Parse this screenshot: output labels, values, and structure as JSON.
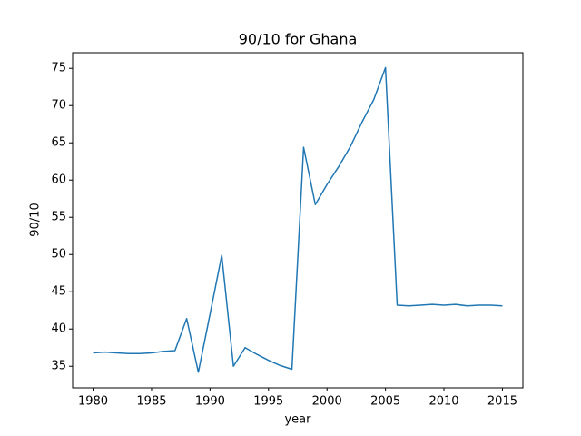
{
  "chart_data": {
    "type": "line",
    "title": "90/10 for Ghana",
    "xlabel": "year",
    "ylabel": "90/10",
    "x": [
      1980,
      1981,
      1982,
      1983,
      1984,
      1985,
      1986,
      1987,
      1988,
      1989,
      1990,
      1991,
      1992,
      1993,
      1994,
      1995,
      1996,
      1997,
      1998,
      1999,
      2000,
      2001,
      2002,
      2003,
      2004,
      2005,
      2006,
      2007,
      2008,
      2009,
      2010,
      2011,
      2012,
      2013,
      2014,
      2015
    ],
    "series": [
      {
        "color": "#1f77b4",
        "values": [
          36.8,
          36.9,
          36.8,
          36.7,
          36.7,
          36.8,
          37.0,
          37.1,
          41.4,
          34.2,
          42.0,
          49.9,
          35.0,
          37.5,
          36.6,
          35.8,
          35.1,
          34.6,
          64.4,
          56.7,
          59.4,
          61.8,
          64.5,
          67.8,
          70.8,
          75.1,
          43.2,
          43.1,
          43.2,
          43.3,
          43.2,
          43.3,
          43.1,
          43.2,
          43.2,
          43.1
        ]
      }
    ],
    "xlim": [
      1978.25,
      2016.75
    ],
    "xticks": [
      1980,
      1985,
      1990,
      1995,
      2000,
      2005,
      2010,
      2015
    ],
    "ylim": [
      32.1,
      77.1
    ],
    "yticks": [
      35,
      40,
      45,
      50,
      55,
      60,
      65,
      70,
      75
    ]
  }
}
